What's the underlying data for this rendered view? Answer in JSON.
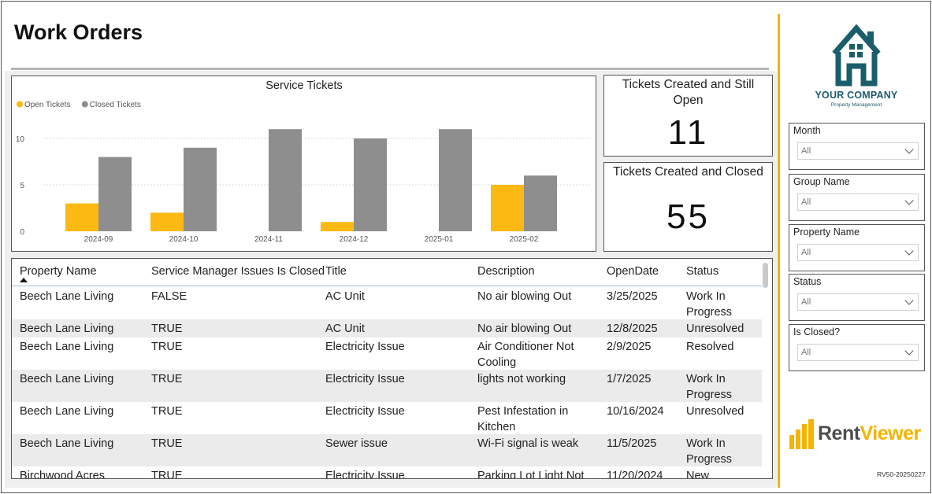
{
  "page": {
    "title": "Work Orders"
  },
  "cards": [
    {
      "title": "Tickets Created and Still Open",
      "value": "11"
    },
    {
      "title": "Tickets Created and Closed",
      "value": "55"
    }
  ],
  "chart_data": {
    "type": "bar",
    "title": "Service Tickets",
    "categories": [
      "2024-09",
      "2024-10",
      "2024-11",
      "2024-12",
      "2025-01",
      "2025-02"
    ],
    "series": [
      {
        "name": "Open Tickets",
        "color": "#FDB913",
        "values": [
          3,
          2,
          0,
          1,
          0,
          5
        ]
      },
      {
        "name": "Closed Tickets",
        "color": "#8E8E8E",
        "values": [
          8,
          9,
          11,
          10,
          11,
          6
        ]
      }
    ],
    "yticks": [
      0,
      5,
      10
    ],
    "ylim": [
      0,
      12
    ],
    "grid": true,
    "legend_position": "top-left"
  },
  "table": {
    "columns": [
      "Property Name",
      "Service Manager Issues Is Closed",
      "Title",
      "Description",
      "OpenDate",
      "Status"
    ],
    "rows": [
      [
        "Beech Lane Living",
        "FALSE",
        "AC Unit",
        "No air blowing Out",
        "3/25/2025",
        "Work In Progress"
      ],
      [
        "Beech Lane Living",
        "TRUE",
        "AC Unit",
        "No air blowing Out",
        "12/8/2025",
        "Unresolved"
      ],
      [
        "Beech Lane Living",
        "TRUE",
        "Electricity Issue",
        "Air Conditioner Not Cooling",
        "2/9/2025",
        "Resolved"
      ],
      [
        "Beech Lane Living",
        "TRUE",
        "Electricity Issue",
        "lights not working",
        "1/7/2025",
        "Work In Progress"
      ],
      [
        "Beech Lane Living",
        "TRUE",
        "Electricity Issue",
        "Pest Infestation in Kitchen",
        "10/16/2024",
        "Unresolved"
      ],
      [
        "Beech Lane Living",
        "TRUE",
        "Sewer issue",
        "Wi-Fi signal is weak",
        "11/5/2025",
        "Work In Progress"
      ],
      [
        "Birchwood Acres",
        "TRUE",
        "Electricity Issue",
        "Parking Lot Light Not",
        "11/20/2024",
        "New"
      ]
    ]
  },
  "branding": {
    "company_name": "YOUR COMPANY",
    "company_sub": "Property Management",
    "brand_color": "#1B5D6B",
    "accent_color": "#F4B400",
    "product_rent": "Rent",
    "product_viewer": "Viewer",
    "version": "RV50-20250227"
  },
  "slicers": [
    {
      "label": "Month",
      "value": "All"
    },
    {
      "label": "Group Name",
      "value": "All"
    },
    {
      "label": "Property Name",
      "value": "All"
    },
    {
      "label": "Status",
      "value": "All"
    },
    {
      "label": "Is Closed?",
      "value": "All"
    }
  ]
}
